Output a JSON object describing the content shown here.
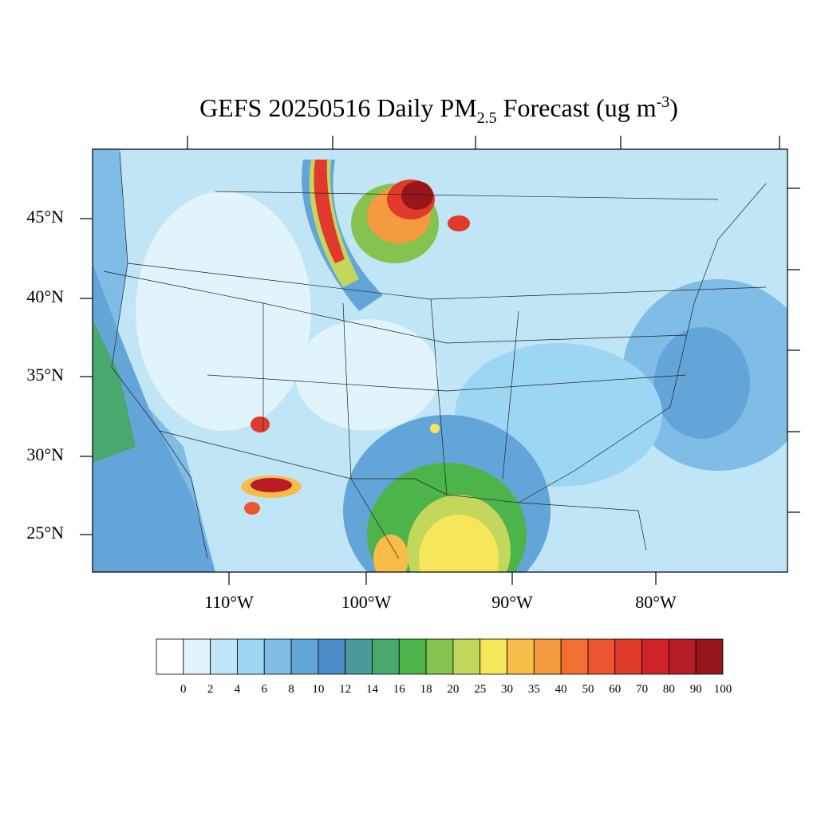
{
  "title": {
    "main": "GEFS 20250516 Daily PM",
    "sub": "2.5",
    "rest": " Forecast (ug m",
    "sup": "-3",
    "end": ")"
  },
  "lat_labels": [
    "45°N",
    "40°N",
    "35°N",
    "30°N",
    "25°N"
  ],
  "lon_labels": [
    "110°W",
    "100°W",
    "90°W",
    "80°W"
  ],
  "colorbar": {
    "levels": [
      0,
      2,
      4,
      6,
      8,
      10,
      12,
      14,
      16,
      18,
      20,
      25,
      30,
      35,
      40,
      50,
      60,
      70,
      80,
      90,
      100
    ],
    "colors": [
      "#ffffff",
      "#e1f3fb",
      "#bfe5f6",
      "#9dd6f2",
      "#7fbce6",
      "#63a5d8",
      "#4a8bc8",
      "#4a9a9c",
      "#48a86e",
      "#4cb44a",
      "#84c34f",
      "#c2d75b",
      "#f6e65a",
      "#f8bc49",
      "#f59a3e",
      "#f26e31",
      "#ea5530",
      "#df3a2b",
      "#d02329",
      "#b81d25",
      "#961619"
    ]
  }
}
